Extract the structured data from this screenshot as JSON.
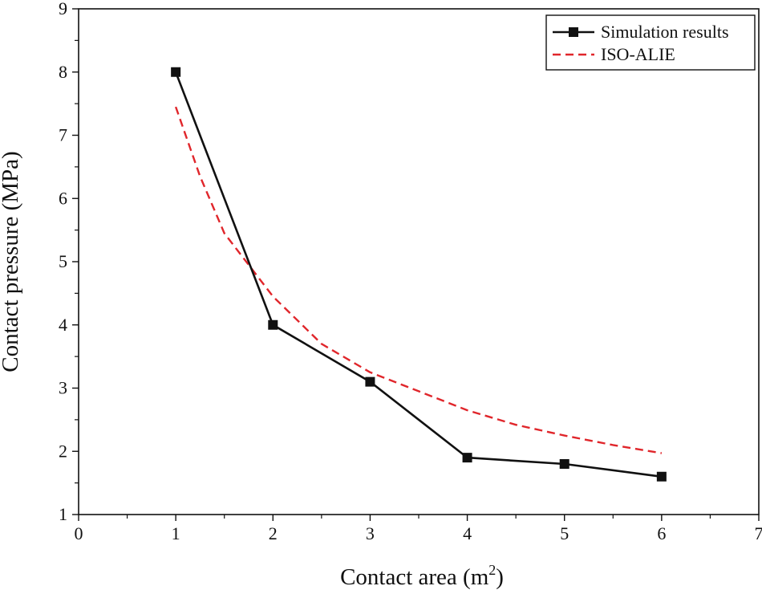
{
  "chart_data": {
    "type": "line",
    "xlabel_main": "Contact area (m",
    "xlabel_sup": "2",
    "xlabel_close": ")",
    "ylabel": "Contact pressure (MPa)",
    "xlim": [
      0,
      7
    ],
    "ylim": [
      1,
      9
    ],
    "xticks": [
      "0",
      "1",
      "2",
      "3",
      "4",
      "5",
      "6",
      "7"
    ],
    "yticks": [
      "1",
      "2",
      "3",
      "4",
      "5",
      "6",
      "7",
      "8",
      "9"
    ],
    "legend_position": "top-right",
    "series": [
      {
        "name": "Simulation results",
        "style": "solid-with-square-markers",
        "color": "#111111",
        "x": [
          1,
          2,
          3,
          4,
          5,
          6
        ],
        "y": [
          8.0,
          4.0,
          3.1,
          1.9,
          1.8,
          1.6
        ]
      },
      {
        "name": "ISO-ALIE",
        "style": "dashed",
        "color": "#e0262b",
        "x": [
          1.0,
          1.25,
          1.5,
          1.75,
          2.0,
          2.5,
          3.0,
          3.5,
          4.0,
          4.5,
          5.0,
          5.5,
          6.0
        ],
        "y": [
          7.45,
          6.35,
          5.45,
          4.95,
          4.45,
          3.7,
          3.25,
          2.95,
          2.65,
          2.42,
          2.25,
          2.1,
          1.97
        ]
      }
    ]
  }
}
